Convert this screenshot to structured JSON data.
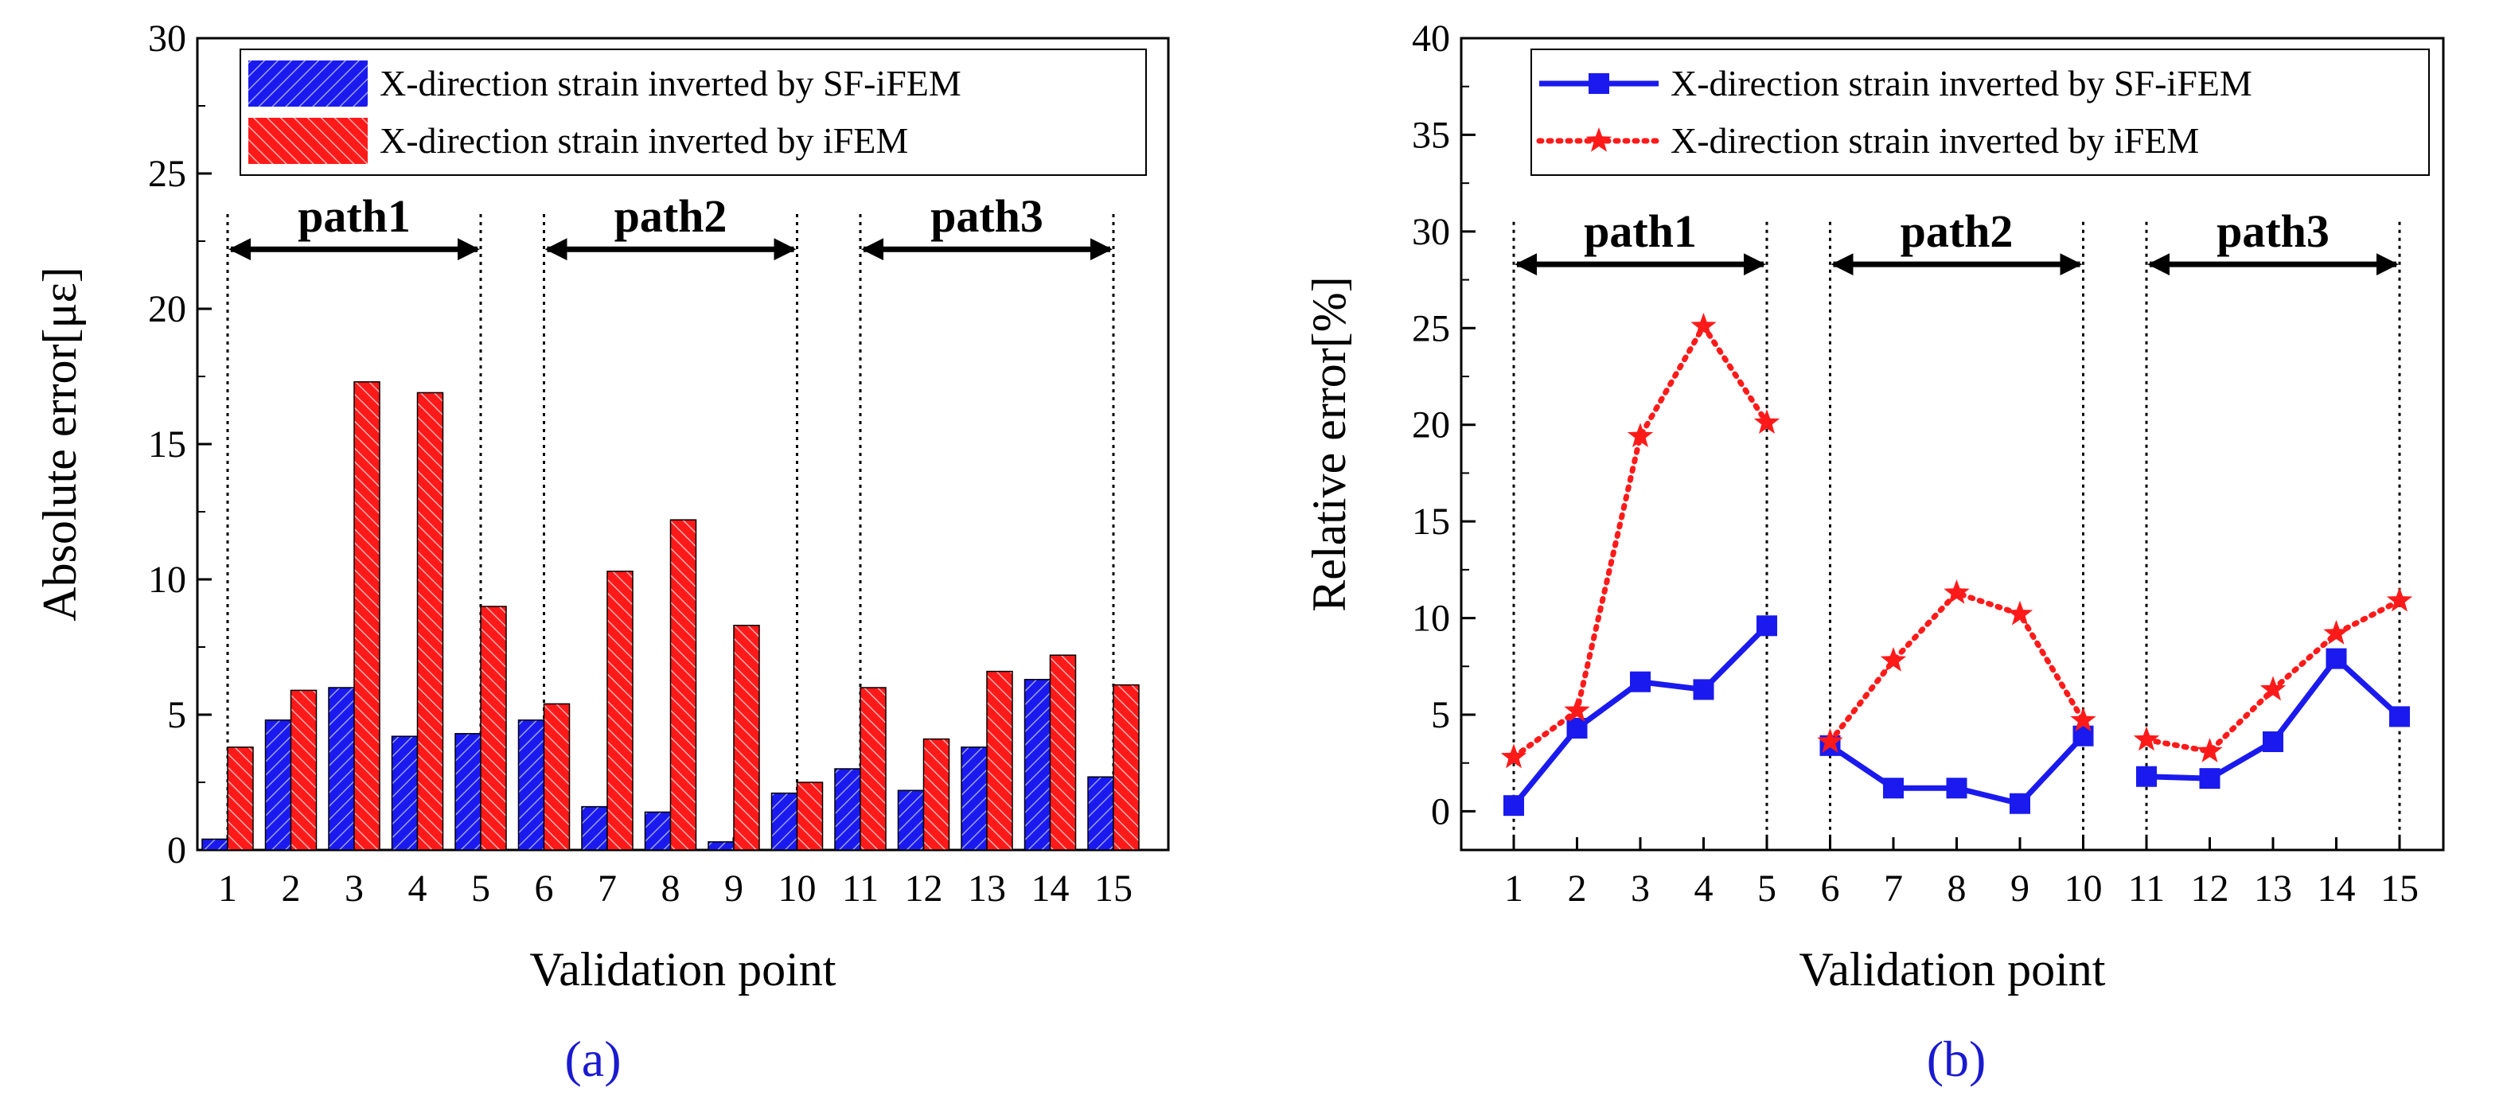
{
  "colors": {
    "blue": "#1a1aee",
    "red": "#ff1a1a",
    "caption": "#1a1ad0"
  },
  "chart_data": [
    {
      "type": "bar",
      "title": "",
      "caption": "(a)",
      "xlabel": "Validation point",
      "ylabel": "Absolute error[με]",
      "categories": [
        "1",
        "2",
        "3",
        "4",
        "5",
        "6",
        "7",
        "8",
        "9",
        "10",
        "11",
        "12",
        "13",
        "14",
        "15"
      ],
      "ylim": [
        0,
        30
      ],
      "yticks": [
        0,
        5,
        10,
        15,
        20,
        25,
        30
      ],
      "series": [
        {
          "name": "X-direction strain inverted by SF-iFEM",
          "color": "#1a1aee",
          "values": [
            0.4,
            4.8,
            6.0,
            4.2,
            4.3,
            4.8,
            1.6,
            1.4,
            0.3,
            2.1,
            3.0,
            2.2,
            3.8,
            6.3,
            2.7
          ]
        },
        {
          "name": "X-direction strain inverted by iFEM",
          "color": "#ff1a1a",
          "values": [
            3.8,
            5.9,
            17.3,
            16.9,
            9.0,
            5.4,
            10.3,
            12.2,
            8.3,
            2.5,
            6.0,
            4.1,
            6.6,
            7.2,
            6.1
          ]
        }
      ],
      "paths": [
        {
          "label": "path1",
          "from": 1,
          "to": 5
        },
        {
          "label": "path2",
          "from": 6,
          "to": 10
        },
        {
          "label": "path3",
          "from": 11,
          "to": 15
        }
      ],
      "path_arrow_y": 22.2,
      "path_line_top": 23.5,
      "legend": "top-right"
    },
    {
      "type": "line",
      "title": "",
      "caption": "(b)",
      "xlabel": "Validation point",
      "ylabel": "Relative error[%]",
      "categories": [
        "1",
        "2",
        "3",
        "4",
        "5",
        "6",
        "7",
        "8",
        "9",
        "10",
        "11",
        "12",
        "13",
        "14",
        "15"
      ],
      "ylim": [
        -2,
        40
      ],
      "yticks": [
        0,
        5,
        10,
        15,
        20,
        25,
        30,
        35,
        40
      ],
      "series": [
        {
          "name": "X-direction strain inverted by SF-iFEM",
          "color": "#1a1aee",
          "style": "solid",
          "marker": "square",
          "values": [
            0.3,
            4.3,
            6.7,
            6.3,
            9.6,
            3.4,
            1.2,
            1.2,
            0.4,
            3.9,
            1.8,
            1.7,
            3.6,
            7.9,
            4.9
          ]
        },
        {
          "name": "X-direction strain inverted by iFEM",
          "color": "#ff1a1a",
          "style": "dotted",
          "marker": "star",
          "values": [
            2.8,
            5.2,
            19.4,
            25.1,
            20.1,
            3.6,
            7.8,
            11.3,
            10.2,
            4.7,
            3.7,
            3.1,
            6.3,
            9.2,
            10.9
          ]
        }
      ],
      "paths": [
        {
          "label": "path1",
          "from": 1,
          "to": 5
        },
        {
          "label": "path2",
          "from": 6,
          "to": 10
        },
        {
          "label": "path3",
          "from": 11,
          "to": 15
        }
      ],
      "path_arrow_y": 28.3,
      "path_line_top": 30.5,
      "legend": "top-right"
    }
  ]
}
